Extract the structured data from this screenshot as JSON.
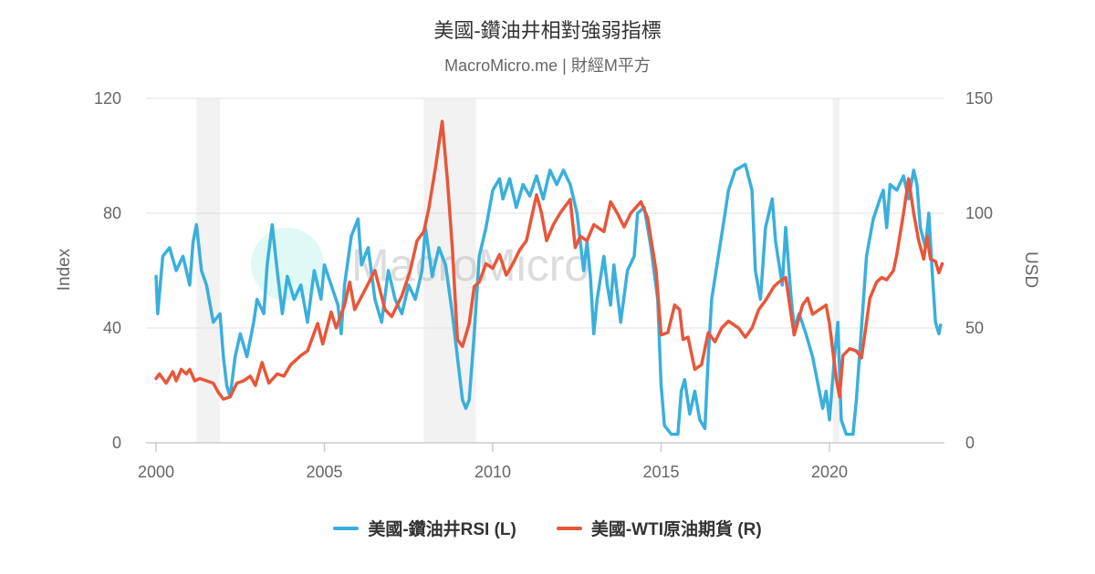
{
  "chart_data": {
    "type": "line",
    "title": "美國-鑽油井相對強弱指標",
    "subtitle": "MacroMicro.me | 財經M平方",
    "watermark": "MacroMicro",
    "xlabel": "",
    "ylabel_left": "Index",
    "ylabel_right": "USD",
    "xlim": [
      2000,
      2023.4
    ],
    "ylim_left": [
      0,
      120
    ],
    "ylim_right": [
      0,
      150
    ],
    "x_ticks": [
      "2000",
      "2005",
      "2010",
      "2015",
      "2020"
    ],
    "y_ticks_left": [
      "0",
      "40",
      "80",
      "120"
    ],
    "y_ticks_right": [
      "0",
      "50",
      "100",
      "150"
    ],
    "grid": true,
    "legend_position": "bottom",
    "recessions": [
      [
        2001.2,
        2001.9
      ],
      [
        2007.95,
        2009.5
      ],
      [
        2020.1,
        2020.3
      ]
    ],
    "series": [
      {
        "name": "美國-鑽油井RSI (L)",
        "axis": "left",
        "color": "#3aafdc",
        "points": [
          [
            2000.0,
            58
          ],
          [
            2000.05,
            45
          ],
          [
            2000.2,
            65
          ],
          [
            2000.4,
            68
          ],
          [
            2000.6,
            60
          ],
          [
            2000.8,
            65
          ],
          [
            2001.0,
            55
          ],
          [
            2001.1,
            70
          ],
          [
            2001.2,
            76
          ],
          [
            2001.35,
            60
          ],
          [
            2001.5,
            55
          ],
          [
            2001.7,
            42
          ],
          [
            2001.9,
            45
          ],
          [
            2002.0,
            30
          ],
          [
            2002.1,
            20
          ],
          [
            2002.2,
            16
          ],
          [
            2002.35,
            30
          ],
          [
            2002.5,
            38
          ],
          [
            2002.7,
            30
          ],
          [
            2002.9,
            42
          ],
          [
            2003.0,
            50
          ],
          [
            2003.2,
            45
          ],
          [
            2003.3,
            62
          ],
          [
            2003.45,
            76
          ],
          [
            2003.6,
            60
          ],
          [
            2003.75,
            45
          ],
          [
            2003.9,
            58
          ],
          [
            2004.1,
            50
          ],
          [
            2004.3,
            55
          ],
          [
            2004.5,
            42
          ],
          [
            2004.7,
            60
          ],
          [
            2004.9,
            50
          ],
          [
            2005.0,
            62
          ],
          [
            2005.2,
            55
          ],
          [
            2005.4,
            48
          ],
          [
            2005.5,
            38
          ],
          [
            2005.6,
            55
          ],
          [
            2005.8,
            72
          ],
          [
            2006.0,
            78
          ],
          [
            2006.1,
            62
          ],
          [
            2006.3,
            68
          ],
          [
            2006.5,
            50
          ],
          [
            2006.7,
            42
          ],
          [
            2006.9,
            60
          ],
          [
            2007.1,
            50
          ],
          [
            2007.3,
            45
          ],
          [
            2007.5,
            55
          ],
          [
            2007.7,
            50
          ],
          [
            2007.9,
            60
          ],
          [
            2008.0,
            75
          ],
          [
            2008.2,
            58
          ],
          [
            2008.4,
            68
          ],
          [
            2008.6,
            62
          ],
          [
            2008.8,
            45
          ],
          [
            2009.0,
            25
          ],
          [
            2009.1,
            15
          ],
          [
            2009.2,
            12
          ],
          [
            2009.3,
            15
          ],
          [
            2009.45,
            38
          ],
          [
            2009.6,
            65
          ],
          [
            2009.8,
            75
          ],
          [
            2010.0,
            88
          ],
          [
            2010.2,
            92
          ],
          [
            2010.3,
            85
          ],
          [
            2010.5,
            92
          ],
          [
            2010.7,
            82
          ],
          [
            2010.9,
            90
          ],
          [
            2011.1,
            86
          ],
          [
            2011.3,
            93
          ],
          [
            2011.5,
            85
          ],
          [
            2011.7,
            95
          ],
          [
            2011.9,
            90
          ],
          [
            2012.1,
            95
          ],
          [
            2012.3,
            90
          ],
          [
            2012.5,
            80
          ],
          [
            2012.7,
            60
          ],
          [
            2012.8,
            70
          ],
          [
            2012.9,
            58
          ],
          [
            2013.0,
            38
          ],
          [
            2013.1,
            50
          ],
          [
            2013.3,
            65
          ],
          [
            2013.4,
            55
          ],
          [
            2013.5,
            48
          ],
          [
            2013.6,
            62
          ],
          [
            2013.8,
            42
          ],
          [
            2014.0,
            60
          ],
          [
            2014.2,
            65
          ],
          [
            2014.3,
            80
          ],
          [
            2014.5,
            82
          ],
          [
            2014.7,
            68
          ],
          [
            2014.9,
            50
          ],
          [
            2015.0,
            20
          ],
          [
            2015.1,
            6
          ],
          [
            2015.3,
            3
          ],
          [
            2015.5,
            3
          ],
          [
            2015.6,
            18
          ],
          [
            2015.7,
            22
          ],
          [
            2015.85,
            10
          ],
          [
            2016.0,
            18
          ],
          [
            2016.15,
            8
          ],
          [
            2016.3,
            5
          ],
          [
            2016.4,
            30
          ],
          [
            2016.5,
            50
          ],
          [
            2016.7,
            65
          ],
          [
            2016.9,
            80
          ],
          [
            2017.0,
            88
          ],
          [
            2017.2,
            95
          ],
          [
            2017.5,
            97
          ],
          [
            2017.7,
            88
          ],
          [
            2017.8,
            60
          ],
          [
            2017.95,
            50
          ],
          [
            2018.1,
            75
          ],
          [
            2018.3,
            85
          ],
          [
            2018.4,
            70
          ],
          [
            2018.6,
            55
          ],
          [
            2018.7,
            75
          ],
          [
            2018.85,
            52
          ],
          [
            2018.95,
            40
          ],
          [
            2019.1,
            45
          ],
          [
            2019.3,
            38
          ],
          [
            2019.5,
            30
          ],
          [
            2019.7,
            18
          ],
          [
            2019.8,
            12
          ],
          [
            2019.9,
            18
          ],
          [
            2020.0,
            8
          ],
          [
            2020.15,
            30
          ],
          [
            2020.25,
            42
          ],
          [
            2020.35,
            8
          ],
          [
            2020.5,
            3
          ],
          [
            2020.7,
            3
          ],
          [
            2020.8,
            15
          ],
          [
            2020.95,
            40
          ],
          [
            2021.1,
            65
          ],
          [
            2021.3,
            78
          ],
          [
            2021.5,
            85
          ],
          [
            2021.6,
            88
          ],
          [
            2021.7,
            75
          ],
          [
            2021.8,
            90
          ],
          [
            2022.0,
            88
          ],
          [
            2022.2,
            93
          ],
          [
            2022.35,
            85
          ],
          [
            2022.5,
            95
          ],
          [
            2022.6,
            90
          ],
          [
            2022.7,
            75
          ],
          [
            2022.85,
            68
          ],
          [
            2022.95,
            80
          ],
          [
            2023.05,
            60
          ],
          [
            2023.15,
            42
          ],
          [
            2023.25,
            38
          ],
          [
            2023.3,
            41
          ]
        ]
      },
      {
        "name": "美國-WTI原油期貨 (R)",
        "axis": "right",
        "color": "#e8563a",
        "points": [
          [
            2000.0,
            28
          ],
          [
            2000.1,
            30
          ],
          [
            2000.3,
            26
          ],
          [
            2000.5,
            31
          ],
          [
            2000.6,
            27
          ],
          [
            2000.75,
            32
          ],
          [
            2000.9,
            30
          ],
          [
            2001.0,
            32
          ],
          [
            2001.15,
            27
          ],
          [
            2001.3,
            28
          ],
          [
            2001.5,
            27
          ],
          [
            2001.7,
            26
          ],
          [
            2001.85,
            22
          ],
          [
            2002.0,
            19
          ],
          [
            2002.2,
            20
          ],
          [
            2002.4,
            26
          ],
          [
            2002.6,
            27
          ],
          [
            2002.8,
            29
          ],
          [
            2002.95,
            25
          ],
          [
            2003.15,
            35
          ],
          [
            2003.35,
            26
          ],
          [
            2003.6,
            30
          ],
          [
            2003.8,
            29
          ],
          [
            2004.0,
            34
          ],
          [
            2004.3,
            38
          ],
          [
            2004.5,
            40
          ],
          [
            2004.8,
            52
          ],
          [
            2004.95,
            43
          ],
          [
            2005.2,
            57
          ],
          [
            2005.35,
            50
          ],
          [
            2005.6,
            60
          ],
          [
            2005.75,
            70
          ],
          [
            2005.9,
            58
          ],
          [
            2006.15,
            65
          ],
          [
            2006.5,
            75
          ],
          [
            2006.8,
            58
          ],
          [
            2007.0,
            55
          ],
          [
            2007.3,
            64
          ],
          [
            2007.55,
            75
          ],
          [
            2007.75,
            88
          ],
          [
            2007.95,
            92
          ],
          [
            2008.1,
            102
          ],
          [
            2008.3,
            120
          ],
          [
            2008.5,
            140
          ],
          [
            2008.65,
            115
          ],
          [
            2008.8,
            85
          ],
          [
            2008.95,
            45
          ],
          [
            2009.1,
            42
          ],
          [
            2009.3,
            52
          ],
          [
            2009.45,
            68
          ],
          [
            2009.6,
            70
          ],
          [
            2009.8,
            78
          ],
          [
            2010.0,
            76
          ],
          [
            2010.2,
            82
          ],
          [
            2010.4,
            73
          ],
          [
            2010.6,
            78
          ],
          [
            2010.8,
            84
          ],
          [
            2011.0,
            88
          ],
          [
            2011.3,
            108
          ],
          [
            2011.45,
            100
          ],
          [
            2011.6,
            88
          ],
          [
            2011.8,
            95
          ],
          [
            2012.0,
            100
          ],
          [
            2012.3,
            106
          ],
          [
            2012.45,
            85
          ],
          [
            2012.6,
            90
          ],
          [
            2012.8,
            88
          ],
          [
            2013.0,
            95
          ],
          [
            2013.3,
            92
          ],
          [
            2013.5,
            105
          ],
          [
            2013.7,
            100
          ],
          [
            2013.9,
            94
          ],
          [
            2014.1,
            100
          ],
          [
            2014.4,
            105
          ],
          [
            2014.6,
            98
          ],
          [
            2014.85,
            75
          ],
          [
            2015.0,
            47
          ],
          [
            2015.2,
            48
          ],
          [
            2015.4,
            60
          ],
          [
            2015.55,
            58
          ],
          [
            2015.65,
            45
          ],
          [
            2015.8,
            46
          ],
          [
            2016.0,
            32
          ],
          [
            2016.2,
            34
          ],
          [
            2016.4,
            48
          ],
          [
            2016.6,
            44
          ],
          [
            2016.8,
            50
          ],
          [
            2017.0,
            53
          ],
          [
            2017.3,
            50
          ],
          [
            2017.5,
            46
          ],
          [
            2017.7,
            50
          ],
          [
            2017.9,
            58
          ],
          [
            2018.1,
            62
          ],
          [
            2018.35,
            68
          ],
          [
            2018.5,
            70
          ],
          [
            2018.7,
            72
          ],
          [
            2018.95,
            47
          ],
          [
            2019.2,
            60
          ],
          [
            2019.35,
            63
          ],
          [
            2019.5,
            56
          ],
          [
            2019.7,
            58
          ],
          [
            2019.9,
            60
          ],
          [
            2020.0,
            52
          ],
          [
            2020.2,
            28
          ],
          [
            2020.3,
            20
          ],
          [
            2020.4,
            38
          ],
          [
            2020.6,
            41
          ],
          [
            2020.8,
            40
          ],
          [
            2020.95,
            37
          ],
          [
            2021.2,
            63
          ],
          [
            2021.4,
            70
          ],
          [
            2021.55,
            72
          ],
          [
            2021.7,
            71
          ],
          [
            2021.9,
            75
          ],
          [
            2022.0,
            82
          ],
          [
            2022.2,
            100
          ],
          [
            2022.35,
            115
          ],
          [
            2022.5,
            100
          ],
          [
            2022.65,
            88
          ],
          [
            2022.8,
            80
          ],
          [
            2022.9,
            90
          ],
          [
            2023.0,
            80
          ],
          [
            2023.15,
            79
          ],
          [
            2023.25,
            74
          ],
          [
            2023.35,
            78
          ]
        ]
      }
    ]
  }
}
